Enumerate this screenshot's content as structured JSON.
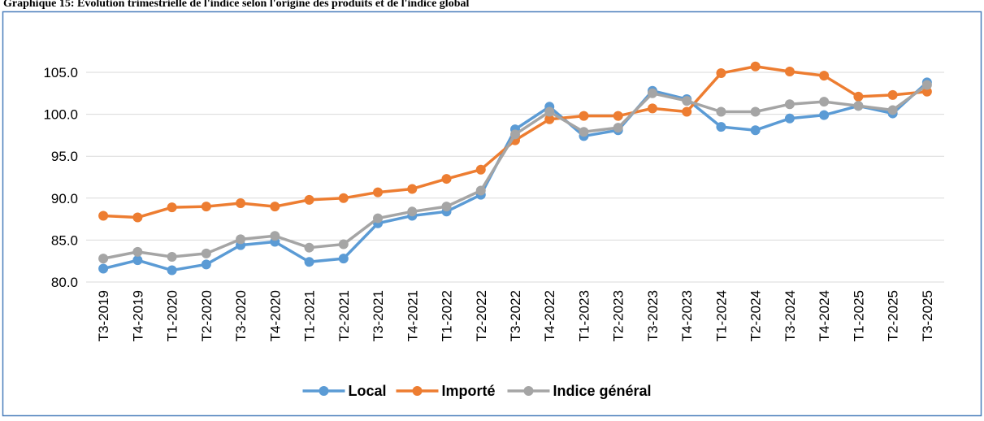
{
  "chart_data": {
    "type": "line",
    "title": "Graphique 15: Évolution trimestrielle de l'indice selon l'origine des produits et de l'indice global",
    "categories": [
      "T3-2019",
      "T4-2019",
      "T1-2020",
      "T2-2020",
      "T3-2020",
      "T4-2020",
      "T1-2021",
      "T2-2021",
      "T3-2021",
      "T4-2021",
      "T1-2022",
      "T2-2022",
      "T3-2022",
      "T4-2022",
      "T1-2023",
      "T2-2023",
      "T3-2023",
      "T4-2023",
      "T1-2024",
      "T2-2024",
      "T3-2024",
      "T4-2024",
      "T1-2025",
      "T2-2025",
      "T3-2025"
    ],
    "series": [
      {
        "name": "Local",
        "color": "#5b9bd5",
        "values": [
          81.6,
          82.6,
          81.4,
          82.1,
          84.4,
          84.8,
          82.4,
          82.8,
          87.0,
          87.9,
          88.4,
          90.4,
          98.2,
          100.9,
          97.4,
          98.1,
          102.8,
          101.8,
          98.5,
          98.1,
          99.5,
          99.9,
          101.0,
          100.1,
          103.8
        ]
      },
      {
        "name": "Importé",
        "color": "#ed7d31",
        "values": [
          87.9,
          87.7,
          88.9,
          89.0,
          89.4,
          89.0,
          89.8,
          90.0,
          90.7,
          91.1,
          92.3,
          93.4,
          96.9,
          99.4,
          99.8,
          99.8,
          100.7,
          100.3,
          104.9,
          105.7,
          105.1,
          104.6,
          102.1,
          102.3,
          102.7
        ]
      },
      {
        "name": "Indice général",
        "color": "#a5a5a5",
        "values": [
          82.8,
          83.6,
          83.0,
          83.4,
          85.1,
          85.5,
          84.1,
          84.5,
          87.6,
          88.4,
          89.0,
          90.9,
          97.6,
          100.3,
          97.9,
          98.4,
          102.5,
          101.6,
          100.3,
          100.3,
          101.2,
          101.5,
          101.0,
          100.5,
          103.5
        ]
      }
    ],
    "ylim": [
      80,
      110
    ],
    "yticks": [
      {
        "value": 80,
        "label": "80.0"
      },
      {
        "value": 85,
        "label": "85.0"
      },
      {
        "value": 90,
        "label": "90.0"
      },
      {
        "value": 95,
        "label": "95.0"
      },
      {
        "value": 100,
        "label": "100.0"
      },
      {
        "value": 105,
        "label": "105.0"
      }
    ],
    "grid": true,
    "legend": "bottom"
  }
}
